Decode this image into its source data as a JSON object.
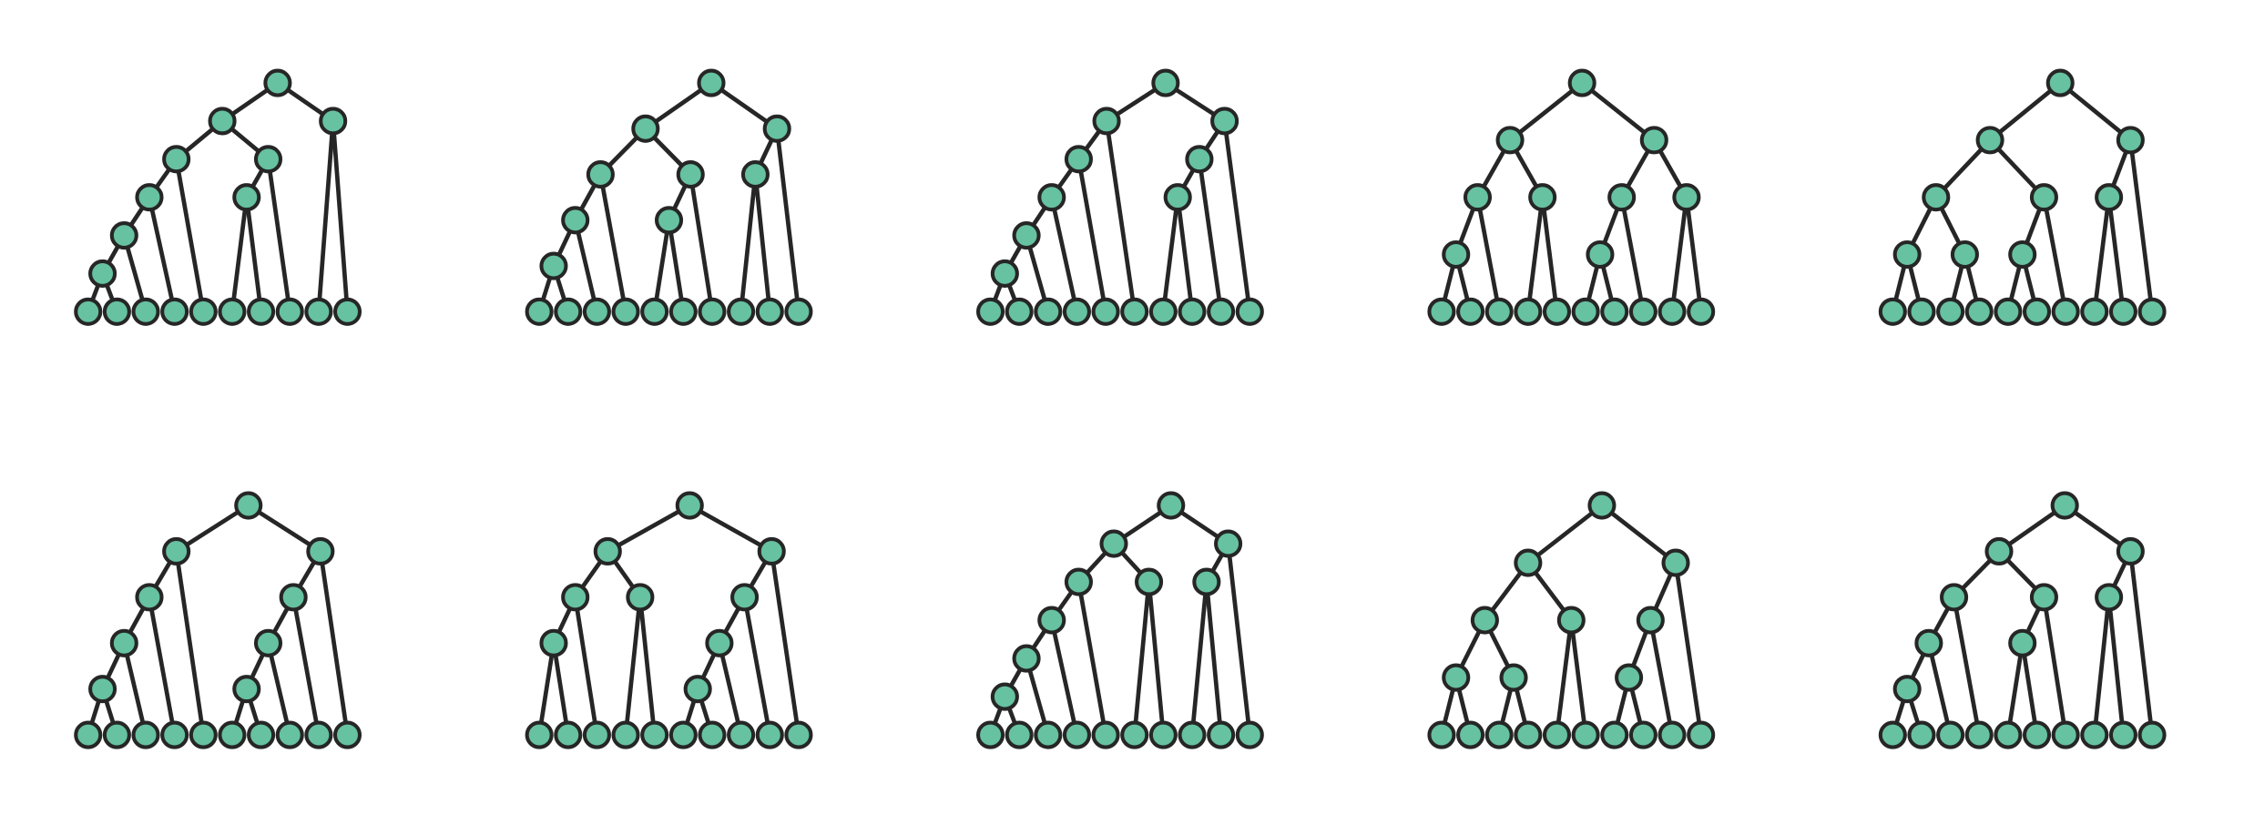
{
  "trees": [
    [
      [
        [
          [
            [
              [
                [],
                []
              ],
              []
            ],
            []
          ],
          []
        ],
        [
          [
            [],
            []
          ],
          []
        ]
      ],
      [
        [],
        []
      ]
    ],
    [
      [
        [
          [
            [
              [],
              []
            ],
            []
          ],
          []
        ],
        [
          [
            [],
            []
          ],
          []
        ]
      ],
      [
        [
          [],
          []
        ],
        []
      ]
    ],
    [
      [
        [
          [
            [
              [
                [],
                []
              ],
              []
            ],
            []
          ],
          []
        ],
        []
      ],
      [
        [
          [
            [],
            []
          ],
          []
        ],
        []
      ]
    ],
    [
      [
        [
          [
            [],
            []
          ],
          []
        ],
        [
          [],
          []
        ]
      ],
      [
        [
          [
            [],
            []
          ],
          []
        ],
        [
          [],
          []
        ]
      ]
    ],
    [
      [
        [
          [
            [],
            []
          ],
          [
            [],
            []
          ]
        ],
        [
          [
            [],
            []
          ],
          []
        ]
      ],
      [
        [
          [],
          []
        ],
        []
      ]
    ],
    [
      [
        [
          [
            [
              [],
              []
            ],
            []
          ],
          []
        ],
        []
      ],
      [
        [
          [
            [
              [],
              []
            ],
            []
          ],
          []
        ],
        []
      ]
    ],
    [
      [
        [
          [
            [],
            []
          ],
          []
        ],
        [
          [],
          []
        ]
      ],
      [
        [
          [
            [
              [],
              []
            ],
            []
          ],
          []
        ],
        []
      ]
    ],
    [
      [
        [
          [
            [
              [
                [],
                []
              ],
              []
            ],
            []
          ],
          []
        ],
        [
          [],
          []
        ]
      ],
      [
        [
          [],
          []
        ],
        []
      ]
    ],
    [
      [
        [
          [
            [],
            []
          ],
          [
            [],
            []
          ]
        ],
        [
          [],
          []
        ]
      ],
      [
        [
          [
            [],
            []
          ],
          []
        ],
        []
      ]
    ],
    [
      [
        [
          [
            [
              [],
              []
            ],
            []
          ],
          []
        ],
        [
          [
            [],
            []
          ],
          []
        ]
      ],
      [
        [
          [],
          []
        ],
        []
      ]
    ]
  ]
}
